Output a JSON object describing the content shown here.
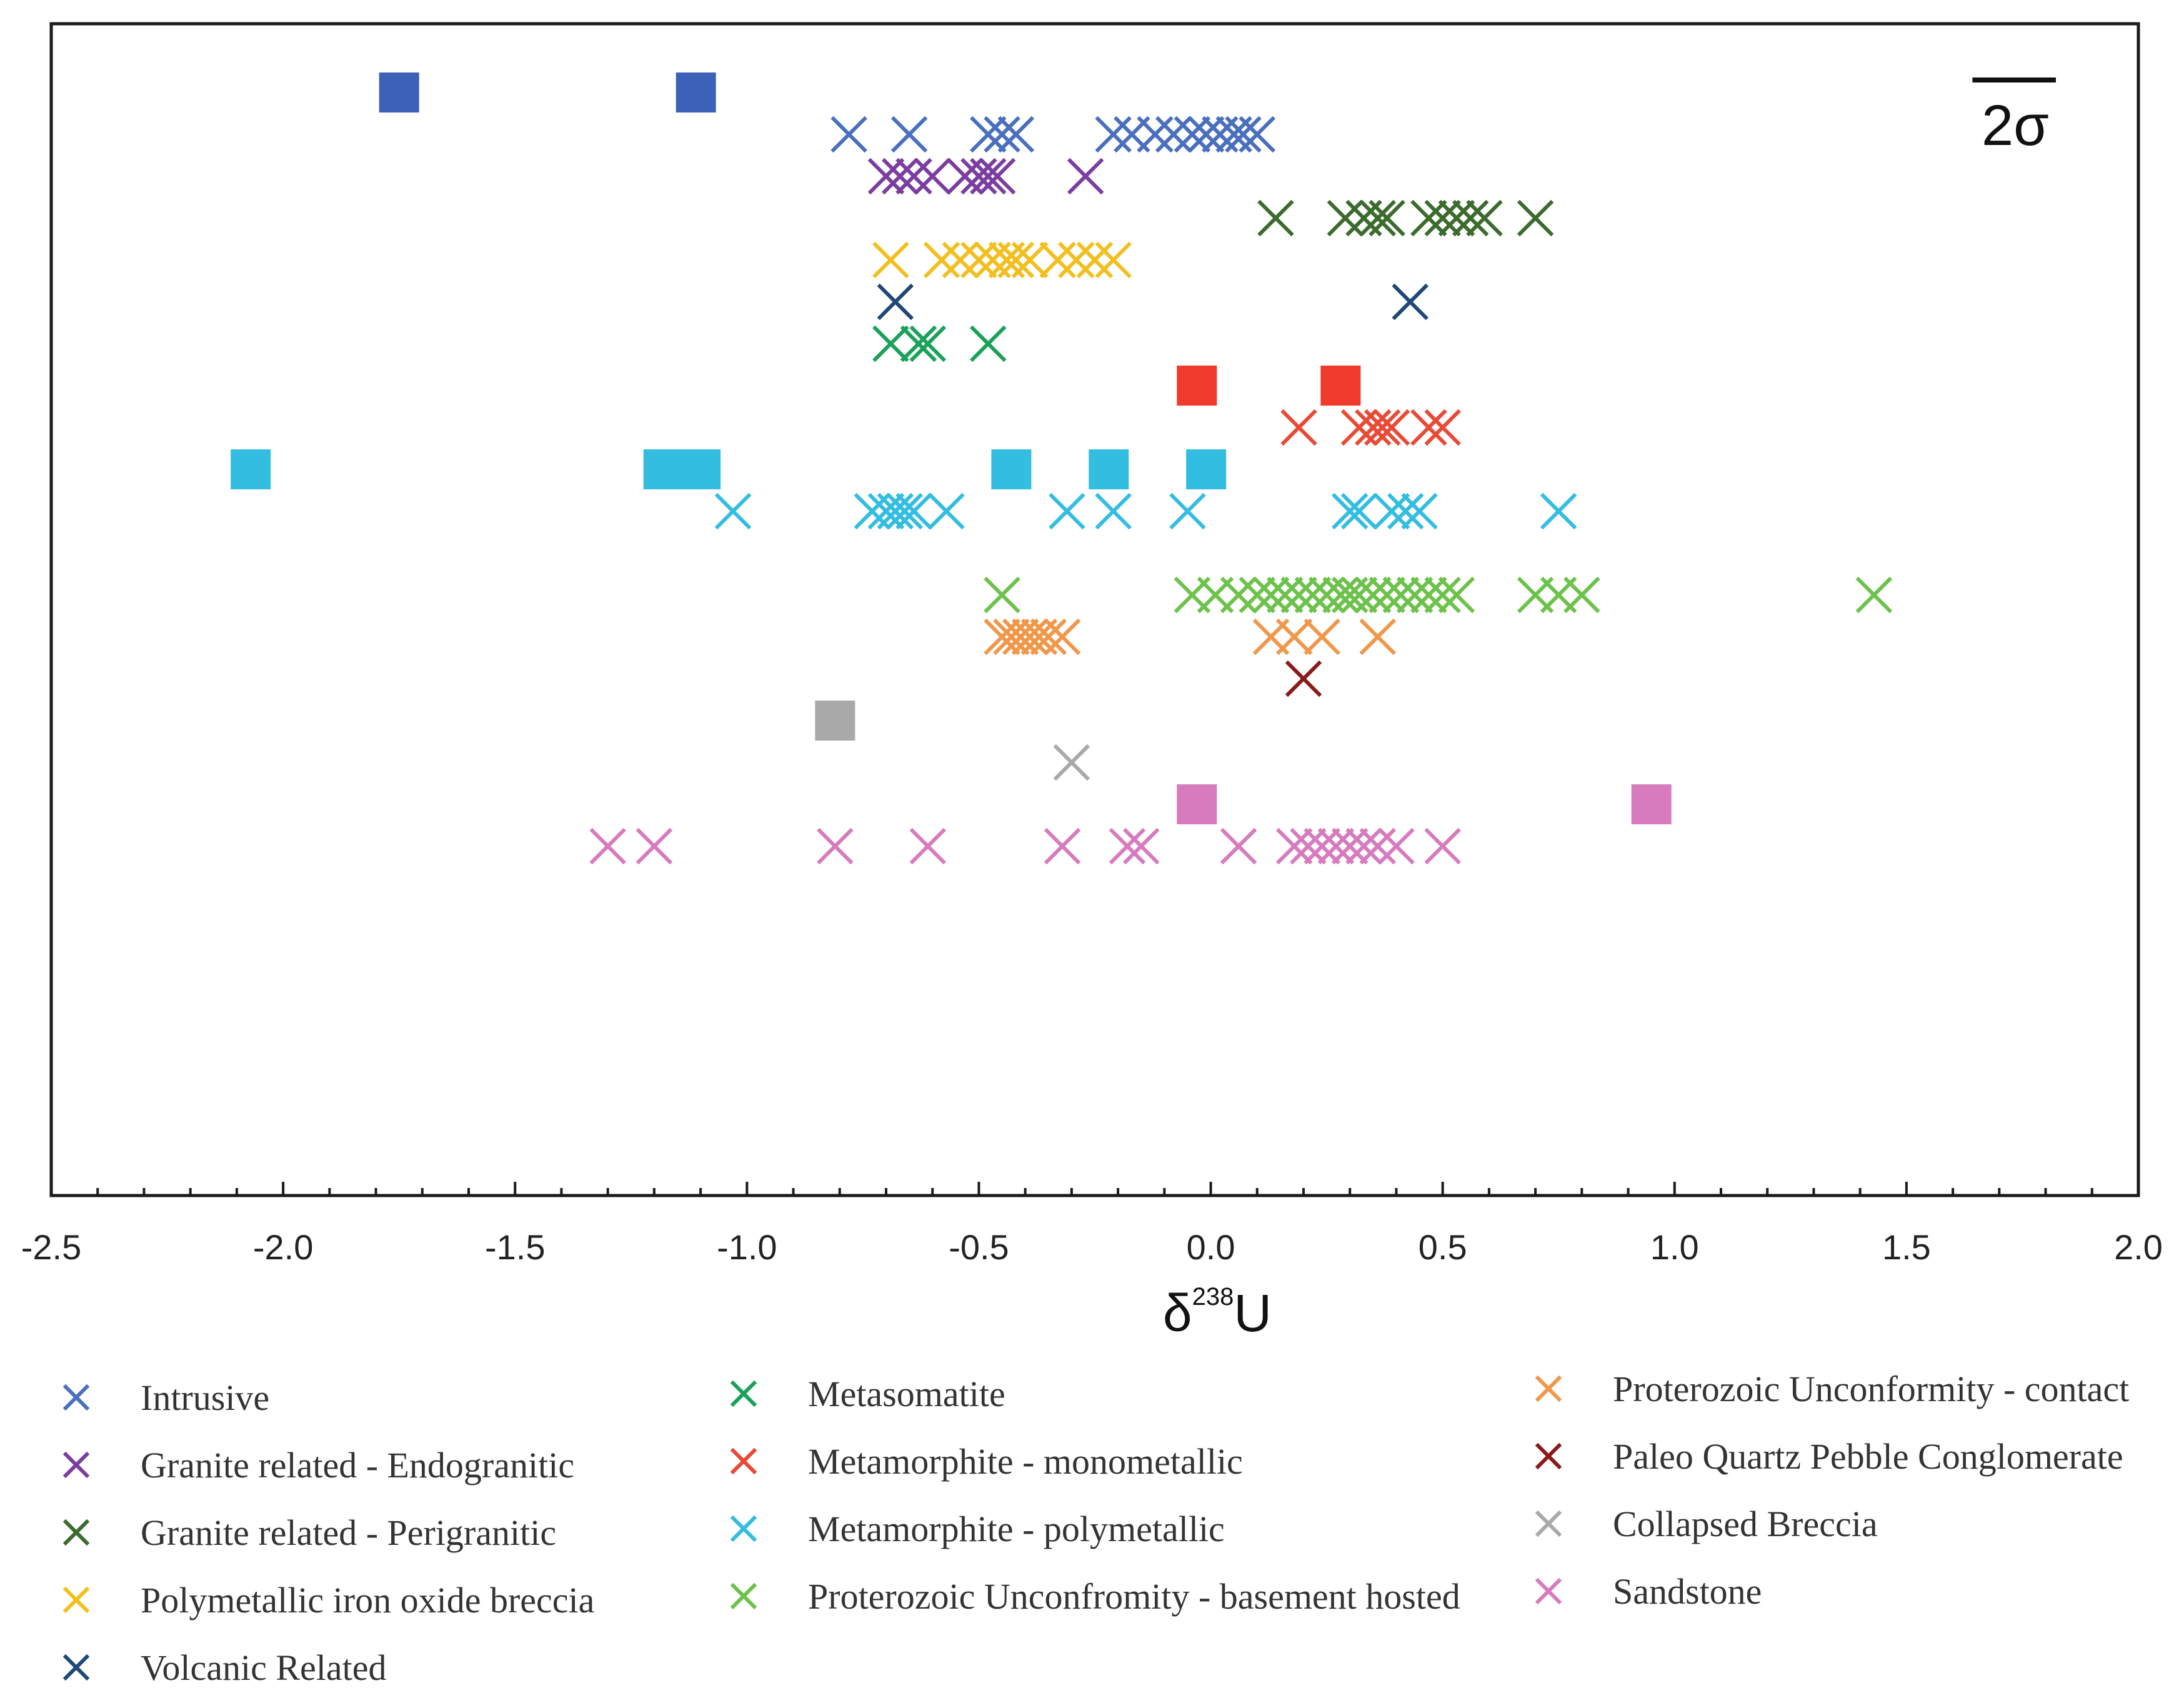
{
  "chart_data": {
    "type": "scatter",
    "xlabel_main": "δ",
    "xlabel_sup": "238",
    "xlabel_end": "U",
    "xlim": [
      -2.5,
      2.0
    ],
    "xticks": [
      "-2.5",
      "-2.0",
      "-1.5",
      "-1.0",
      "-0.5",
      "0.0",
      "0.5",
      "1.0",
      "1.5",
      "2.0"
    ],
    "xtick_values": [
      -2.5,
      -2.0,
      -1.5,
      -1.0,
      -0.5,
      0.0,
      0.5,
      1.0,
      1.5,
      2.0
    ],
    "grid": false,
    "legend_placement": "bottom",
    "scale_bar_label": "2σ",
    "scale_bar_width_units": 0.18,
    "series": [
      {
        "name": "Intrusive",
        "color": "#4a6fbf",
        "row": 1,
        "marker": "x",
        "x": [
          -0.78,
          -0.65,
          -0.48,
          -0.45,
          -0.42,
          -0.21,
          -0.17,
          -0.12,
          -0.08,
          -0.04,
          -0.01,
          0.02,
          0.05,
          0.07,
          0.1
        ]
      },
      {
        "name": "Granite related - Endogranitic",
        "color": "#7b3ea0",
        "row": 2,
        "marker": "x",
        "x": [
          -0.7,
          -0.67,
          -0.64,
          -0.6,
          -0.53,
          -0.5,
          -0.48,
          -0.46,
          -0.27
        ]
      },
      {
        "name": "Granite related - Perigranitic",
        "color": "#3c6b2e",
        "row": 3,
        "marker": "x",
        "x": [
          0.14,
          0.29,
          0.33,
          0.36,
          0.38,
          0.47,
          0.5,
          0.53,
          0.56,
          0.59,
          0.7
        ]
      },
      {
        "name": "Polymetallic iron oxide breccia",
        "color": "#f2bf1e",
        "row": 4,
        "marker": "x",
        "x": [
          -0.69,
          -0.58,
          -0.54,
          -0.5,
          -0.47,
          -0.44,
          -0.42,
          -0.39,
          -0.33,
          -0.29,
          -0.25,
          -0.21
        ]
      },
      {
        "name": "Volcanic Related",
        "color": "#1f4878",
        "row": 5,
        "marker": "x",
        "x": [
          -0.68,
          0.43
        ]
      },
      {
        "name": "Metasomatite",
        "color": "#1aa15a",
        "row": 6,
        "marker": "x",
        "x": [
          -0.69,
          -0.63,
          -0.61,
          -0.48
        ]
      },
      {
        "name": "Metamorphite - monometallic",
        "color": "#e84a36",
        "row": 8,
        "marker": "x",
        "x": [
          0.19,
          0.32,
          0.35,
          0.37,
          0.39,
          0.47,
          0.5
        ]
      },
      {
        "name": "Metamorphite - polymetallic",
        "color": "#33bde0",
        "row": 10,
        "marker": "x",
        "x": [
          -1.03,
          -0.73,
          -0.7,
          -0.68,
          -0.66,
          -0.64,
          -0.57,
          -0.31,
          -0.21,
          -0.05,
          0.3,
          0.32,
          0.39,
          0.42,
          0.45,
          0.75
        ]
      },
      {
        "name": "Proterozoic Unconfromity - basement hosted",
        "color": "#6cc24a",
        "row": 12,
        "marker": "x",
        "x": [
          -0.45,
          -0.04,
          0.01,
          0.06,
          0.1,
          0.13,
          0.16,
          0.19,
          0.22,
          0.25,
          0.28,
          0.3,
          0.32,
          0.35,
          0.38,
          0.41,
          0.44,
          0.47,
          0.5,
          0.53,
          0.7,
          0.75,
          0.8,
          1.43
        ]
      },
      {
        "name": "Proterozoic Unconformity - contact",
        "color": "#f0974a",
        "row": 13,
        "marker": "x",
        "x": [
          -0.45,
          -0.43,
          -0.41,
          -0.39,
          -0.37,
          -0.35,
          -0.32,
          0.13,
          0.18,
          0.24,
          0.36
        ]
      },
      {
        "name": "Paleo Quartz Pebble Conglomerate",
        "color": "#8b1a1a",
        "row": 14,
        "marker": "x",
        "x": [
          0.2
        ]
      },
      {
        "name": "Collapsed Breccia",
        "color": "#a9a9a9",
        "row": 16,
        "marker": "x",
        "x": [
          -0.3
        ]
      },
      {
        "name": "Sandstone",
        "color": "#d77bbe",
        "row": 18,
        "marker": "x",
        "x": [
          -1.3,
          -1.2,
          -0.81,
          -0.61,
          -0.32,
          -0.18,
          -0.15,
          0.06,
          0.18,
          0.21,
          0.24,
          0.27,
          0.3,
          0.33,
          0.36,
          0.4,
          0.5
        ]
      }
    ],
    "square_markers": [
      {
        "color": "#3b62b8",
        "row": 0,
        "x": [
          -1.75,
          -1.11
        ]
      },
      {
        "color": "#ee3b2b",
        "row": 7,
        "x": [
          -0.03,
          0.28
        ]
      },
      {
        "color": "#33bde0",
        "row": 9,
        "x": [
          -2.07,
          -1.18,
          -1.1,
          -0.43,
          -0.22,
          -0.01
        ]
      },
      {
        "color": "#a9a9a9",
        "row": 15,
        "x": [
          -0.81
        ]
      },
      {
        "color": "#d77bbe",
        "row": 17,
        "x": [
          -0.03,
          0.95
        ]
      }
    ]
  }
}
